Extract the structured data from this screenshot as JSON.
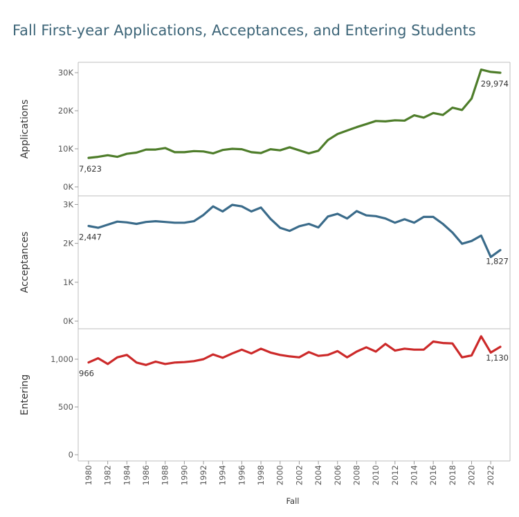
{
  "title": "Fall First-year Applications, Acceptances, and Entering Students",
  "colors": {
    "applications": "#4e7d2a",
    "acceptances": "#3a6b8a",
    "entering": "#cc2929"
  },
  "chart_data": [
    {
      "type": "line",
      "series_key": "applications",
      "ylabel": "Applications",
      "yticks": [
        {
          "v": 0,
          "label": "0K"
        },
        {
          "v": 10000,
          "label": "10K"
        },
        {
          "v": 20000,
          "label": "20K"
        },
        {
          "v": 30000,
          "label": "30K"
        }
      ],
      "ylim": [
        0,
        32000
      ],
      "x": [
        1980,
        1981,
        1982,
        1983,
        1984,
        1985,
        1986,
        1987,
        1988,
        1989,
        1990,
        1991,
        1992,
        1993,
        1994,
        1995,
        1996,
        1997,
        1998,
        1999,
        2000,
        2001,
        2002,
        2003,
        2004,
        2005,
        2006,
        2007,
        2008,
        2009,
        2010,
        2011,
        2012,
        2013,
        2014,
        2015,
        2016,
        2017,
        2018,
        2019,
        2020,
        2021,
        2022,
        2023
      ],
      "values": [
        7623,
        7900,
        8300,
        7900,
        8700,
        9000,
        9800,
        9800,
        10200,
        9100,
        9100,
        9400,
        9300,
        8800,
        9700,
        10000,
        9900,
        9100,
        8900,
        9900,
        9600,
        10400,
        9600,
        8800,
        9500,
        12300,
        13900,
        14800,
        15700,
        16500,
        17300,
        17200,
        17500,
        17400,
        18800,
        18200,
        19400,
        18900,
        20800,
        20200,
        23200,
        30800,
        30200,
        29974
      ],
      "data_labels": [
        {
          "index": 0,
          "text": "7,623"
        },
        {
          "index": 43,
          "text": "29,974"
        }
      ]
    },
    {
      "type": "line",
      "series_key": "acceptances",
      "ylabel": "Acceptances",
      "yticks": [
        {
          "v": 0,
          "label": "0K"
        },
        {
          "v": 1000,
          "label": "1K"
        },
        {
          "v": 2000,
          "label": "2K"
        },
        {
          "v": 3000,
          "label": "3K"
        }
      ],
      "ylim": [
        0,
        3150
      ],
      "x": [
        1980,
        1981,
        1982,
        1983,
        1984,
        1985,
        1986,
        1987,
        1988,
        1989,
        1990,
        1991,
        1992,
        1993,
        1994,
        1995,
        1996,
        1997,
        1998,
        1999,
        2000,
        2001,
        2002,
        2003,
        2004,
        2005,
        2006,
        2007,
        2008,
        2009,
        2010,
        2011,
        2012,
        2013,
        2014,
        2015,
        2016,
        2017,
        2018,
        2019,
        2020,
        2021,
        2022,
        2023
      ],
      "values": [
        2447,
        2400,
        2480,
        2560,
        2540,
        2500,
        2550,
        2570,
        2550,
        2530,
        2530,
        2570,
        2730,
        2950,
        2820,
        2990,
        2950,
        2820,
        2920,
        2630,
        2400,
        2320,
        2440,
        2500,
        2410,
        2690,
        2760,
        2640,
        2830,
        2720,
        2700,
        2640,
        2530,
        2620,
        2530,
        2680,
        2680,
        2500,
        2280,
        1990,
        2060,
        2200,
        1650,
        1827
      ],
      "data_labels": [
        {
          "index": 0,
          "text": "2,447"
        },
        {
          "index": 43,
          "text": "1,827"
        }
      ]
    },
    {
      "type": "line",
      "series_key": "entering",
      "ylabel": "Entering",
      "yticks": [
        {
          "v": 0,
          "label": "0"
        },
        {
          "v": 500,
          "label": "500"
        },
        {
          "v": 1000,
          "label": "1,000"
        }
      ],
      "ylim": [
        0,
        1290
      ],
      "x": [
        1980,
        1981,
        1982,
        1983,
        1984,
        1985,
        1986,
        1987,
        1988,
        1989,
        1990,
        1991,
        1992,
        1993,
        1994,
        1995,
        1996,
        1997,
        1998,
        1999,
        2000,
        2001,
        2002,
        2003,
        2004,
        2005,
        2006,
        2007,
        2008,
        2009,
        2010,
        2011,
        2012,
        2013,
        2014,
        2015,
        2016,
        2017,
        2018,
        2019,
        2020,
        2021,
        2022,
        2023
      ],
      "values": [
        966,
        1010,
        950,
        1020,
        1045,
        965,
        940,
        975,
        950,
        965,
        970,
        980,
        1000,
        1050,
        1015,
        1060,
        1100,
        1060,
        1110,
        1070,
        1045,
        1030,
        1020,
        1075,
        1035,
        1045,
        1085,
        1020,
        1080,
        1125,
        1080,
        1160,
        1090,
        1110,
        1100,
        1100,
        1185,
        1170,
        1165,
        1020,
        1040,
        1240,
        1070,
        1130
      ],
      "data_labels": [
        {
          "index": 0,
          "text": "966"
        },
        {
          "index": 43,
          "text": "1,130"
        }
      ]
    }
  ],
  "x_axis": {
    "label": "Fall",
    "ticks": [
      1980,
      1982,
      1984,
      1986,
      1988,
      1990,
      1992,
      1994,
      1996,
      1998,
      2000,
      2002,
      2004,
      2006,
      2008,
      2010,
      2012,
      2014,
      2016,
      2018,
      2020,
      2022
    ]
  }
}
